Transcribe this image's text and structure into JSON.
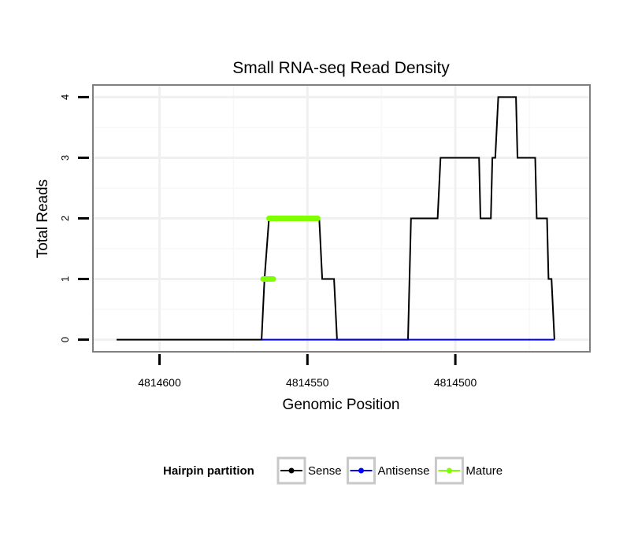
{
  "chart_data": {
    "type": "line",
    "title": "Small RNA-seq Read Density",
    "xlabel": "Genomic Position",
    "ylabel": "Total Reads",
    "xlim": [
      4814622.5,
      4814454.5
    ],
    "ylim": [
      -0.2,
      4.2
    ],
    "x_reversed": true,
    "grid": true,
    "x_ticks": [
      {
        "value": 4814600,
        "label": "4814600"
      },
      {
        "value": 4814550,
        "label": "4814550"
      },
      {
        "value": 4814500,
        "label": "4814500"
      }
    ],
    "y_ticks": [
      {
        "value": 0,
        "label": "0"
      },
      {
        "value": 1,
        "label": "1"
      },
      {
        "value": 2,
        "label": "2"
      },
      {
        "value": 3,
        "label": "3"
      },
      {
        "value": 4,
        "label": "4"
      }
    ],
    "legend": {
      "title": "Hairpin partition",
      "position": "bottom",
      "entries": [
        {
          "name": "Sense",
          "color": "#000000"
        },
        {
          "name": "Antisense",
          "color": "#0000ff"
        },
        {
          "name": "Mature",
          "color": "#80ff00"
        }
      ]
    },
    "series": [
      {
        "name": "Sense",
        "color": "#000000",
        "points": [
          [
            4814614.5,
            0
          ],
          [
            4814565.5,
            0
          ],
          [
            4814564.5,
            1
          ],
          [
            4814563.0,
            2
          ],
          [
            4814546.0,
            2
          ],
          [
            4814545.0,
            1
          ],
          [
            4814541.0,
            1
          ],
          [
            4814540.0,
            0
          ],
          [
            4814516.0,
            0
          ],
          [
            4814515.0,
            2
          ],
          [
            4814506.0,
            2
          ],
          [
            4814505.0,
            3
          ],
          [
            4814492.0,
            3
          ],
          [
            4814491.5,
            2
          ],
          [
            4814488.0,
            2
          ],
          [
            4814487.5,
            3
          ],
          [
            4814486.5,
            3
          ],
          [
            4814485.5,
            4
          ],
          [
            4814479.5,
            4
          ],
          [
            4814479.0,
            3
          ],
          [
            4814473.0,
            3
          ],
          [
            4814472.5,
            2
          ],
          [
            4814469.0,
            2
          ],
          [
            4814468.5,
            1
          ],
          [
            4814467.5,
            1
          ],
          [
            4814466.5,
            0
          ]
        ]
      },
      {
        "name": "Antisense",
        "color": "#0000ff",
        "points": [
          [
            4814565.5,
            0
          ],
          [
            4814540.0,
            0
          ],
          [
            4814516.0,
            0
          ],
          [
            4814466.5,
            0
          ]
        ]
      },
      {
        "name": "Mature",
        "color": "#80ff00",
        "segments": [
          {
            "y": 1,
            "x_start": 4814565.0,
            "x_end": 4814561.5
          },
          {
            "y": 2,
            "x_start": 4814563.0,
            "x_end": 4814546.5
          }
        ]
      }
    ]
  }
}
